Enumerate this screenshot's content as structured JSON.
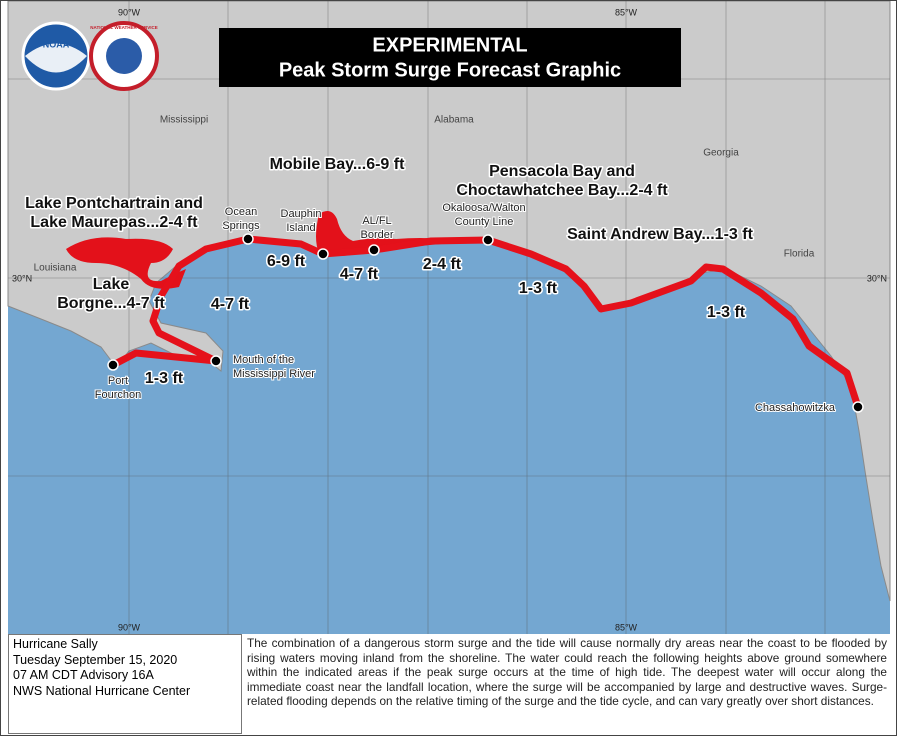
{
  "title": [
    "EXPERIMENTAL",
    "Peak Storm Surge Forecast Graphic"
  ],
  "logos": [
    "NOAA",
    "NATIONAL WEATHER SERVICE"
  ],
  "grid_labels": [
    "90°W",
    "85°W",
    "90°W",
    "85°W",
    "30°N",
    "30°N"
  ],
  "states": [
    "Mississippi",
    "Alabama",
    "Georgia",
    "Florida",
    "Louisiana"
  ],
  "places": [
    [
      "Ocean",
      "Springs"
    ],
    [
      "Dauphin",
      "Island"
    ],
    [
      "AL/FL",
      "Border"
    ],
    [
      "Okaloosa/Walton",
      "County Line"
    ],
    [
      "Mouth of the",
      "Mississippi River"
    ],
    [
      "Port",
      "Fourchon"
    ],
    [
      "Chassahowitzka"
    ]
  ],
  "surge_labels": [
    [
      "Mobile Bay...6-9 ft"
    ],
    [
      "Pensacola Bay and",
      "Choctawhatchee Bay...2-4 ft"
    ],
    [
      "Saint Andrew Bay...1-3 ft"
    ],
    [
      "Lake Pontchartrain and",
      "Lake Maurepas...2-4 ft"
    ],
    [
      "Lake",
      "Borgne...4-7 ft"
    ],
    [
      "6-9 ft"
    ],
    [
      "4-7 ft"
    ],
    [
      "2-4 ft"
    ],
    [
      "1-3 ft"
    ],
    [
      "4-7 ft"
    ],
    [
      "1-3 ft"
    ],
    [
      "1-3 ft"
    ]
  ],
  "info": [
    "Hurricane Sally",
    "Tuesday September 15, 2020",
    "07 AM CDT Advisory 16A",
    "NWS National Hurricane Center"
  ],
  "description": "The combination of a dangerous storm surge and the tide will cause normally dry areas near the coast to be flooded by rising waters moving inland from the shoreline. The water could reach the following heights above ground somewhere within the indicated areas if the peak surge occurs at the time of high tide.  The deepest water will occur along the immediate coast near the landfall location, where the surge will be accompanied by large and destructive waves.  Surge-related flooding depends on the relative timing of the surge and the tide cycle, and can vary greatly over short distances."
}
